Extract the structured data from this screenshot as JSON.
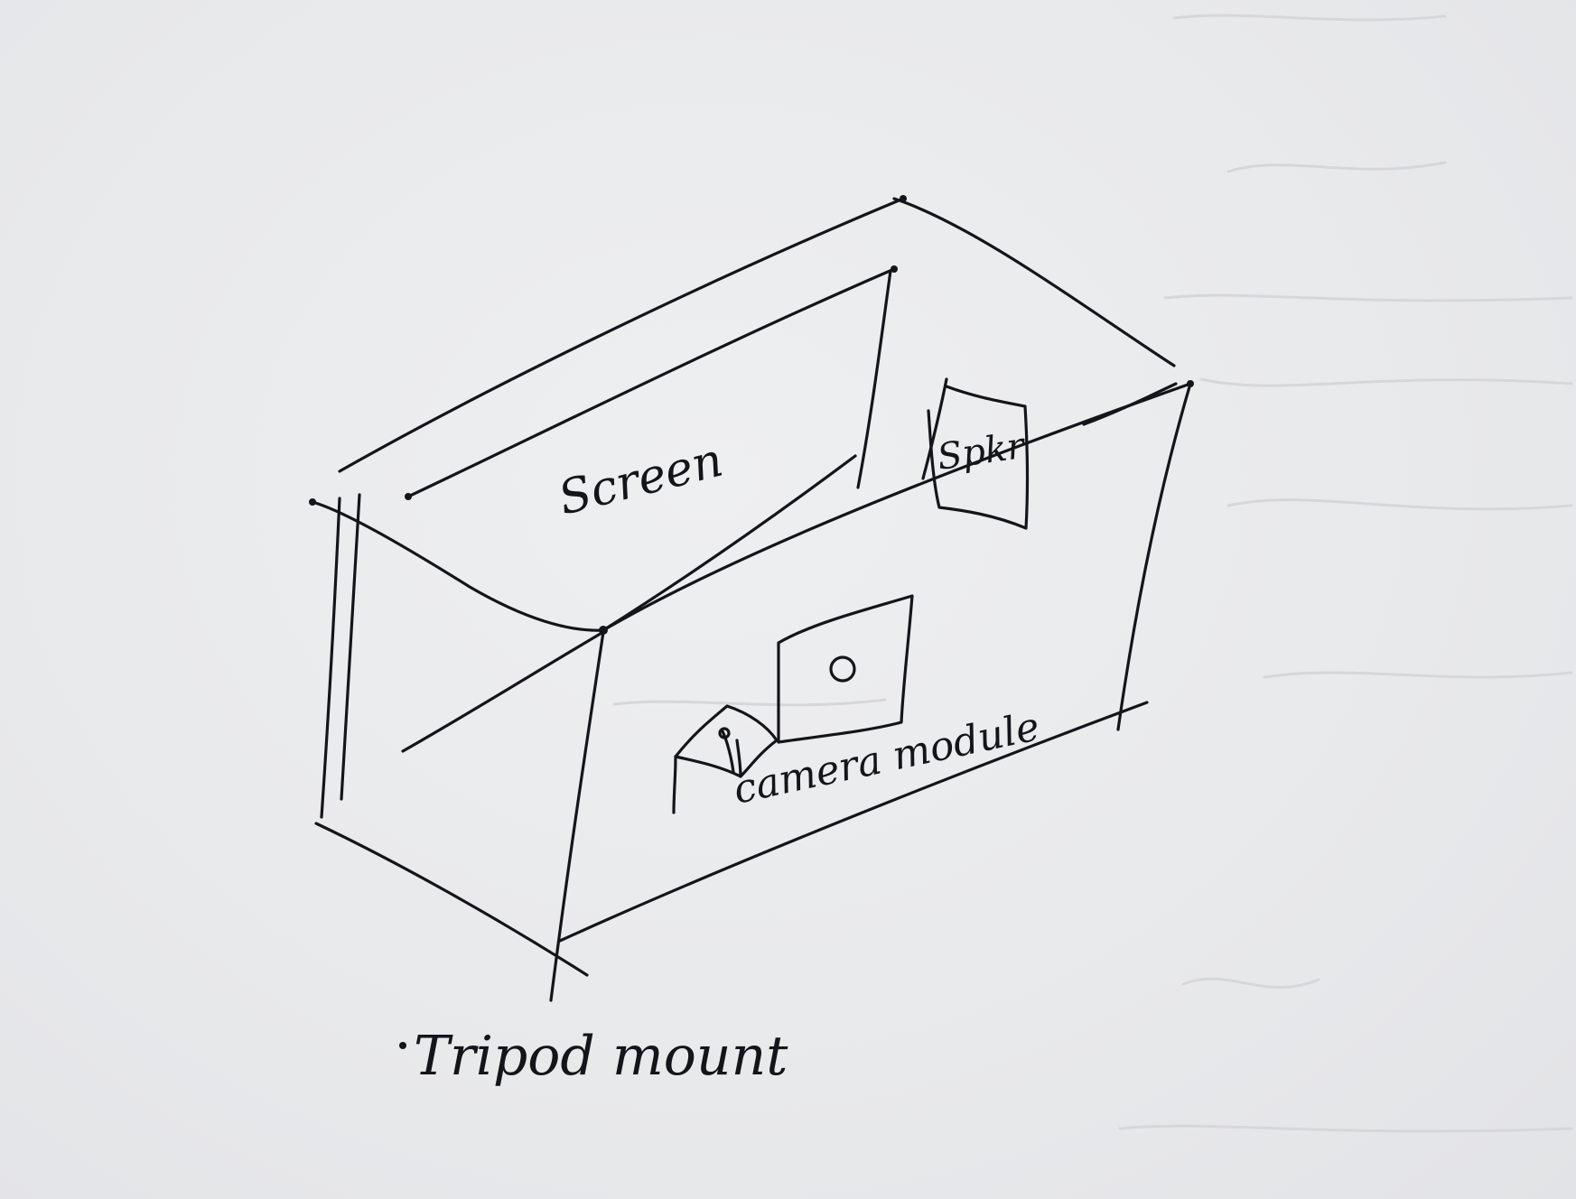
{
  "diagram": {
    "labels": {
      "screen": "Screen",
      "speaker": "Spkr",
      "camera_module": "camera module",
      "tripod_mount": "Tripod mount"
    }
  },
  "colors": {
    "paper": "#e9eaec",
    "ink": "#14151a",
    "bleed_through": "#d6d7da"
  }
}
